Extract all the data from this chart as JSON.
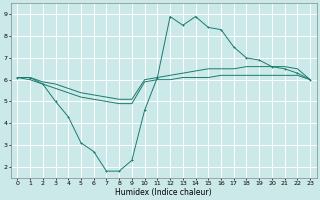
{
  "xlabel": "Humidex (Indice chaleur)",
  "bg_color": "#cce9e9",
  "grid_color": "#ffffff",
  "line_color": "#1a7a6e",
  "xlim": [
    -0.5,
    23.5
  ],
  "ylim": [
    1.5,
    9.5
  ],
  "xticks": [
    0,
    1,
    2,
    3,
    4,
    5,
    6,
    7,
    8,
    9,
    10,
    11,
    12,
    13,
    14,
    15,
    16,
    17,
    18,
    19,
    20,
    21,
    22,
    23
  ],
  "yticks": [
    2,
    3,
    4,
    5,
    6,
    7,
    8,
    9
  ],
  "series1": [
    [
      0,
      6.1
    ],
    [
      1,
      6.1
    ],
    [
      2,
      5.8
    ],
    [
      3,
      5.0
    ],
    [
      4,
      4.3
    ],
    [
      5,
      3.1
    ],
    [
      6,
      2.7
    ],
    [
      7,
      1.8
    ],
    [
      8,
      1.8
    ],
    [
      9,
      2.3
    ],
    [
      10,
      4.6
    ],
    [
      11,
      6.1
    ],
    [
      12,
      8.9
    ],
    [
      13,
      8.5
    ],
    [
      14,
      8.9
    ],
    [
      15,
      8.4
    ],
    [
      16,
      8.3
    ],
    [
      17,
      7.5
    ],
    [
      18,
      7.0
    ],
    [
      19,
      6.9
    ],
    [
      20,
      6.6
    ],
    [
      21,
      6.5
    ],
    [
      22,
      6.3
    ],
    [
      23,
      6.0
    ]
  ],
  "series2": [
    [
      0,
      6.1
    ],
    [
      1,
      6.1
    ],
    [
      2,
      5.9
    ],
    [
      3,
      5.8
    ],
    [
      4,
      5.6
    ],
    [
      5,
      5.4
    ],
    [
      6,
      5.3
    ],
    [
      7,
      5.2
    ],
    [
      8,
      5.1
    ],
    [
      9,
      5.1
    ],
    [
      10,
      6.0
    ],
    [
      11,
      6.1
    ],
    [
      12,
      6.2
    ],
    [
      13,
      6.3
    ],
    [
      14,
      6.4
    ],
    [
      15,
      6.5
    ],
    [
      16,
      6.5
    ],
    [
      17,
      6.5
    ],
    [
      18,
      6.6
    ],
    [
      19,
      6.6
    ],
    [
      20,
      6.6
    ],
    [
      21,
      6.6
    ],
    [
      22,
      6.5
    ],
    [
      23,
      6.0
    ]
  ],
  "series3": [
    [
      0,
      6.1
    ],
    [
      1,
      6.0
    ],
    [
      2,
      5.8
    ],
    [
      3,
      5.6
    ],
    [
      4,
      5.4
    ],
    [
      5,
      5.2
    ],
    [
      6,
      5.1
    ],
    [
      7,
      5.0
    ],
    [
      8,
      4.9
    ],
    [
      9,
      4.9
    ],
    [
      10,
      5.9
    ],
    [
      11,
      6.0
    ],
    [
      12,
      6.0
    ],
    [
      13,
      6.1
    ],
    [
      14,
      6.1
    ],
    [
      15,
      6.1
    ],
    [
      16,
      6.2
    ],
    [
      17,
      6.2
    ],
    [
      18,
      6.2
    ],
    [
      19,
      6.2
    ],
    [
      20,
      6.2
    ],
    [
      21,
      6.2
    ],
    [
      22,
      6.2
    ],
    [
      23,
      6.0
    ]
  ]
}
